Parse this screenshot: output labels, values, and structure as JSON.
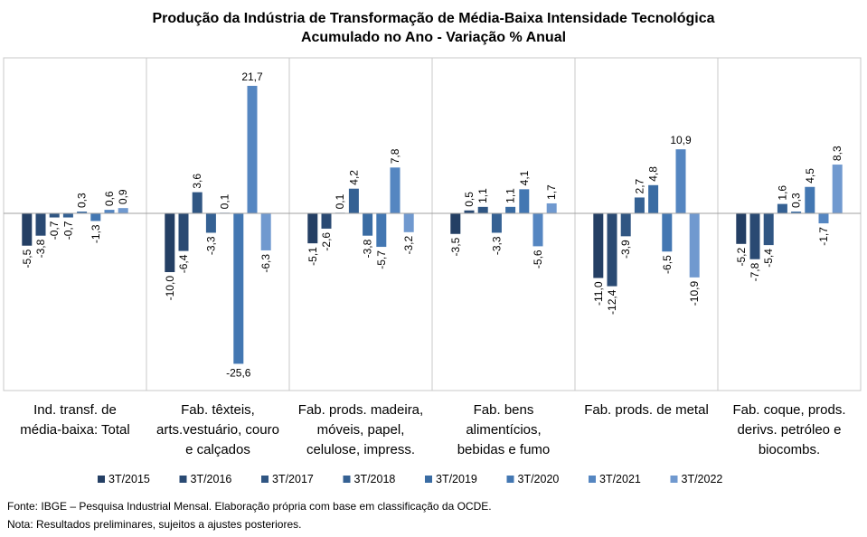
{
  "chart_data": {
    "type": "bar",
    "title": "Produção da Indústria de Transformação de Média-Baixa Intensidade Tecnológica",
    "subtitle": "Acumulado no Ano - Variação % Anual",
    "xlabel": "",
    "ylabel": "",
    "ylim": [
      -28,
      24
    ],
    "grid": false,
    "legend_position": "bottom",
    "categories": [
      [
        "Ind. transf. de",
        "média-baixa: Total"
      ],
      [
        "Fab. têxteis,",
        "arts.vestuário, couro",
        "e calçados"
      ],
      [
        "Fab. prods. madeira,",
        "móveis, papel,",
        "celulose, impress."
      ],
      [
        "Fab. bens",
        "alimentícios,",
        "bebidas e fumo"
      ],
      [
        "Fab. prods. de metal"
      ],
      [
        "Fab. coque, prods.",
        "derivs. petróleo e",
        "biocombs."
      ]
    ],
    "series": [
      {
        "name": "3T/2015",
        "color": "#243f64",
        "values": [
          -5.5,
          -10.0,
          -5.1,
          -3.5,
          -11.0,
          -5.2
        ],
        "labels": [
          "-5,5",
          "-10,0",
          "-5,1",
          "-3,5",
          "-11,0",
          "-5,2"
        ]
      },
      {
        "name": "3T/2016",
        "color": "#2a4a73",
        "values": [
          -3.8,
          -6.4,
          -2.6,
          0.5,
          -12.4,
          -7.8
        ],
        "labels": [
          "-3,8",
          "-6,4",
          "-2,6",
          "0,5",
          "-12,4",
          "-7,8"
        ]
      },
      {
        "name": "3T/2017",
        "color": "#305683",
        "values": [
          -0.7,
          3.6,
          0.1,
          1.1,
          -3.9,
          -5.4
        ],
        "labels": [
          "-0,7",
          "3,6",
          "0,1",
          "1,1",
          "-3,9",
          "-5,4"
        ]
      },
      {
        "name": "3T/2018",
        "color": "#356193",
        "values": [
          -0.7,
          -3.3,
          4.2,
          -3.3,
          2.7,
          1.6
        ],
        "labels": [
          "-0,7",
          "-3,3",
          "4,2",
          "-3,3",
          "2,7",
          "1,6"
        ]
      },
      {
        "name": "3T/2019",
        "color": "#3a6ca3",
        "values": [
          0.3,
          0.1,
          -3.8,
          1.1,
          4.8,
          0.3
        ],
        "labels": [
          "0,3",
          "0,1",
          "-3,8",
          "1,1",
          "4,8",
          "0,3"
        ]
      },
      {
        "name": "3T/2020",
        "color": "#4377b2",
        "values": [
          -1.3,
          -25.6,
          -5.7,
          4.1,
          -6.5,
          4.5
        ],
        "labels": [
          "-1,3",
          "-25,6",
          "-5,7",
          "4,1",
          "-6,5",
          "4,5"
        ]
      },
      {
        "name": "3T/2021",
        "color": "#5586c1",
        "values": [
          0.6,
          21.7,
          7.8,
          -5.6,
          10.9,
          -1.7
        ],
        "labels": [
          "0,6",
          "21,7",
          "7,8",
          "-5,6",
          "10,9",
          "-1,7"
        ]
      },
      {
        "name": "3T/2022",
        "color": "#7099cf",
        "values": [
          0.9,
          -6.3,
          -3.2,
          1.7,
          -10.9,
          8.3
        ],
        "labels": [
          "0,9",
          "-6,3",
          "-3,2",
          "1,7",
          "-10,9",
          "8,3"
        ]
      }
    ]
  },
  "notes": {
    "source": "Fonte: IBGE – Pesquisa Industrial Mensal. Elaboração própria com base em classificação da OCDE.",
    "note": "Nota: Resultados preliminares, sujeitos a ajustes posteriores."
  }
}
